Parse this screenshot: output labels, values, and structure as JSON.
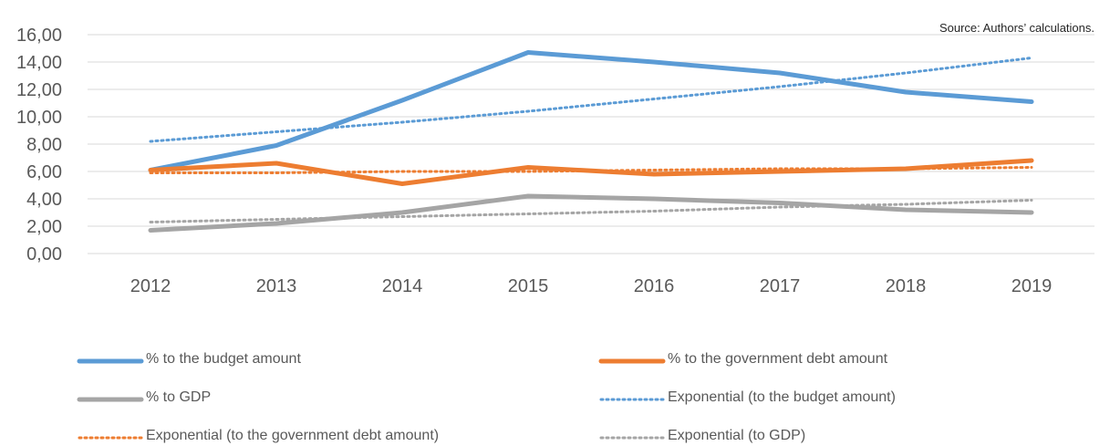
{
  "source": "Source: Authors’ calculations.",
  "chart_data": {
    "type": "line",
    "x": [
      "2012",
      "2013",
      "2014",
      "2015",
      "2016",
      "2017",
      "2018",
      "2019"
    ],
    "ylim": [
      0,
      16
    ],
    "yticks": [
      "0,00",
      "2,00",
      "4,00",
      "6,00",
      "8,00",
      "10,00",
      "12,00",
      "14,00",
      "16,00"
    ],
    "grid": true,
    "legend_position": "bottom",
    "series": [
      {
        "name": "% to the budget amount",
        "style": "solid",
        "color": "#5B9BD5",
        "values": [
          6.1,
          7.9,
          11.2,
          14.7,
          14.0,
          13.2,
          11.8,
          11.1
        ]
      },
      {
        "name": "% to the government debt amount",
        "style": "solid",
        "color": "#ED7D31",
        "values": [
          6.1,
          6.6,
          5.1,
          6.3,
          5.8,
          6.0,
          6.2,
          6.8
        ]
      },
      {
        "name": "% to GDP",
        "style": "solid",
        "color": "#A5A5A5",
        "values": [
          1.7,
          2.2,
          3.0,
          4.2,
          4.0,
          3.7,
          3.2,
          3.0
        ]
      },
      {
        "name": "Exponential (to the budget amount)",
        "style": "dotted",
        "color": "#5B9BD5",
        "values": [
          8.2,
          8.9,
          9.6,
          10.4,
          11.3,
          12.2,
          13.2,
          14.3
        ]
      },
      {
        "name": "Exponential (to the government debt amount)",
        "style": "dotted",
        "color": "#ED7D31",
        "values": [
          5.9,
          5.9,
          6.0,
          6.0,
          6.1,
          6.2,
          6.2,
          6.3
        ]
      },
      {
        "name": "Exponential (to GDP)",
        "style": "dotted",
        "color": "#A5A5A5",
        "values": [
          2.3,
          2.5,
          2.7,
          2.9,
          3.1,
          3.4,
          3.6,
          3.9
        ]
      }
    ]
  }
}
